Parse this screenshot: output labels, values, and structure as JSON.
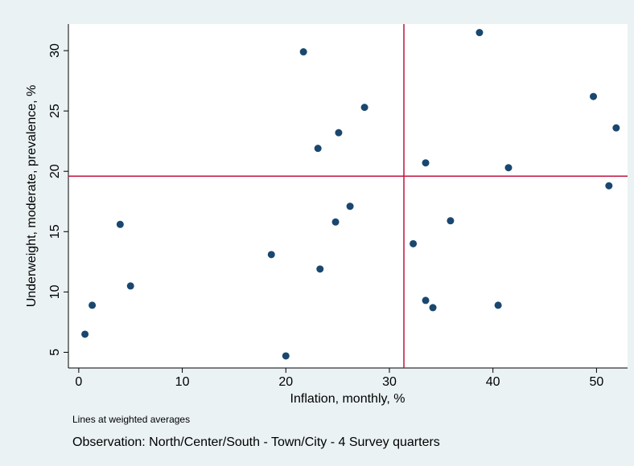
{
  "chart_data": {
    "type": "scatter",
    "x_label": "Inflation, monthly, %",
    "y_label": "Underweight, moderate, prevalence, %",
    "notes": [
      "Lines at weighted averages",
      "Observation: North/Center/South - Town/City - 4 Survey quarters"
    ],
    "x": [
      0.6,
      1.3,
      4.0,
      5.0,
      18.6,
      20.0,
      21.7,
      23.1,
      23.3,
      25.1,
      24.8,
      26.2,
      27.6,
      32.3,
      33.5,
      33.5,
      34.2,
      35.9,
      38.7,
      40.5,
      41.5,
      49.7,
      51.9,
      51.2
    ],
    "values": [
      6.5,
      8.9,
      15.6,
      10.5,
      13.1,
      4.7,
      29.9,
      21.9,
      11.9,
      23.2,
      15.8,
      17.1,
      25.3,
      14.0,
      20.7,
      9.3,
      8.7,
      15.9,
      31.5,
      8.9,
      20.3,
      26.2,
      23.6,
      18.8
    ],
    "color": "#1a476f",
    "reference_lines": {
      "x": 31.4,
      "y": 19.6,
      "color": "#c0143c"
    },
    "xlim": [
      -1,
      53
    ],
    "xticks": [
      0,
      10,
      20,
      30,
      40,
      50
    ],
    "ylim": [
      3.7,
      32.2
    ],
    "yticks": [
      5,
      10,
      15,
      20,
      25,
      30
    ]
  }
}
